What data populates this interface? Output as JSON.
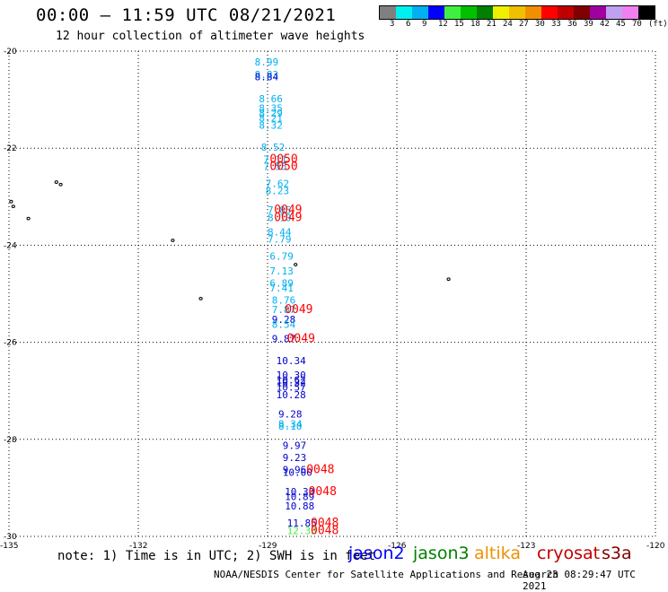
{
  "header": {
    "title": "00:00 – 11:59 UTC 08/21/2021",
    "subtitle": "12 hour collection of altimeter wave heights"
  },
  "color_scale": {
    "colors": [
      "#808080",
      "#00f0f0",
      "#00b0f0",
      "#0000ff",
      "#40f040",
      "#00c000",
      "#008000",
      "#f0f000",
      "#f0c000",
      "#f09000",
      "#ff0000",
      "#c00000",
      "#800000",
      "#a000a0",
      "#c0a0f0",
      "#f080f0",
      "#000000"
    ],
    "labels": [
      "3",
      "6",
      "9",
      "12",
      "15",
      "18",
      "21",
      "24",
      "27",
      "30",
      "33",
      "36",
      "39",
      "42",
      "45",
      "70",
      "(ft)"
    ]
  },
  "axes": {
    "lat_labels": [
      "-20",
      "-22",
      "-24",
      "-26",
      "-28",
      "-30"
    ],
    "lon_labels": [
      "-135",
      "-132",
      "-129",
      "-126",
      "-123",
      "-120"
    ]
  },
  "readings": {
    "wave_heights": [
      {
        "text": "8.99",
        "lat": -20.3,
        "lon": -129.3,
        "color": "#00b0f0"
      },
      {
        "text": "8.83",
        "lat": -20.55,
        "lon": -129.3,
        "color": "#00b0f0"
      },
      {
        "text": "8.84",
        "lat": -20.6,
        "lon": -129.3,
        "color": "#0000cc"
      },
      {
        "text": "8.66",
        "lat": -21.05,
        "lon": -129.2,
        "color": "#00b0f0"
      },
      {
        "text": "8.35",
        "lat": -21.25,
        "lon": -129.2,
        "color": "#00b0f0"
      },
      {
        "text": "8.29",
        "lat": -21.35,
        "lon": -129.2,
        "color": "#00b0f0"
      },
      {
        "text": "8.21",
        "lat": -21.45,
        "lon": -129.2,
        "color": "#00b0f0"
      },
      {
        "text": "8.32",
        "lat": -21.6,
        "lon": -129.2,
        "color": "#00b0f0"
      },
      {
        "text": "8.52",
        "lat": -22.05,
        "lon": -129.15,
        "color": "#00b0f0"
      },
      {
        "text": "7.11",
        "lat": -22.3,
        "lon": -129.1,
        "color": "#00b0f0"
      },
      {
        "text": "7.55",
        "lat": -22.45,
        "lon": -129.1,
        "color": "#00b0f0"
      },
      {
        "text": "7.62",
        "lat": -22.8,
        "lon": -129.05,
        "color": "#00b0f0"
      },
      {
        "text": "8.23",
        "lat": -22.95,
        "lon": -129.05,
        "color": "#00b0f0"
      },
      {
        "text": "7.85",
        "lat": -23.35,
        "lon": -129.0,
        "color": "#00b0f0"
      },
      {
        "text": "8.10",
        "lat": -23.5,
        "lon": -129.0,
        "color": "#00b0f0"
      },
      {
        "text": "8.44",
        "lat": -23.8,
        "lon": -129.0,
        "color": "#00b0f0"
      },
      {
        "text": "7.79",
        "lat": -23.95,
        "lon": -129.0,
        "color": "#00b0f0"
      },
      {
        "text": "6.79",
        "lat": -24.3,
        "lon": -128.95,
        "color": "#00b0f0"
      },
      {
        "text": "7.13",
        "lat": -24.6,
        "lon": -128.95,
        "color": "#00b0f0"
      },
      {
        "text": "6.89",
        "lat": -24.85,
        "lon": -128.95,
        "color": "#00b0f0"
      },
      {
        "text": "7.41",
        "lat": -24.95,
        "lon": -128.95,
        "color": "#00b0f0"
      },
      {
        "text": "8.76",
        "lat": -25.2,
        "lon": -128.9,
        "color": "#00b0f0"
      },
      {
        "text": "7.87",
        "lat": -25.4,
        "lon": -128.9,
        "color": "#00b0f0"
      },
      {
        "text": "9.28",
        "lat": -25.6,
        "lon": -128.9,
        "color": "#0000cc"
      },
      {
        "text": "8.54",
        "lat": -25.7,
        "lon": -128.9,
        "color": "#00b0f0"
      },
      {
        "text": "9.87",
        "lat": -26.0,
        "lon": -128.9,
        "color": "#0000cc"
      },
      {
        "text": "10.34",
        "lat": -26.45,
        "lon": -128.8,
        "color": "#0000cc"
      },
      {
        "text": "10.30",
        "lat": -26.75,
        "lon": -128.8,
        "color": "#0000cc"
      },
      {
        "text": "10.62",
        "lat": -26.85,
        "lon": -128.8,
        "color": "#0000cc"
      },
      {
        "text": "10.32",
        "lat": -26.9,
        "lon": -128.8,
        "color": "#0000cc"
      },
      {
        "text": "10.57",
        "lat": -27.0,
        "lon": -128.8,
        "color": "#0000cc"
      },
      {
        "text": "10.28",
        "lat": -27.15,
        "lon": -128.8,
        "color": "#0000cc"
      },
      {
        "text": "9.28",
        "lat": -27.55,
        "lon": -128.75,
        "color": "#0000cc"
      },
      {
        "text": "8.34",
        "lat": -27.75,
        "lon": -128.75,
        "color": "#00b0f0"
      },
      {
        "text": "8.10",
        "lat": -27.8,
        "lon": -128.75,
        "color": "#00b0f0"
      },
      {
        "text": "9.97",
        "lat": -28.2,
        "lon": -128.65,
        "color": "#0000cc"
      },
      {
        "text": "9.23",
        "lat": -28.45,
        "lon": -128.65,
        "color": "#0000cc"
      },
      {
        "text": "9.96",
        "lat": -28.7,
        "lon": -128.65,
        "color": "#0000cc"
      },
      {
        "text": "10.00",
        "lat": -28.75,
        "lon": -128.65,
        "color": "#0000cc"
      },
      {
        "text": "10.30",
        "lat": -29.15,
        "lon": -128.6,
        "color": "#0000cc"
      },
      {
        "text": "10.89",
        "lat": -29.25,
        "lon": -128.6,
        "color": "#0000cc"
      },
      {
        "text": "10.88",
        "lat": -29.45,
        "lon": -128.6,
        "color": "#0000cc"
      },
      {
        "text": "11.85",
        "lat": -29.8,
        "lon": -128.55,
        "color": "#0000cc"
      },
      {
        "text": "12.33",
        "lat": -29.95,
        "lon": -128.55,
        "color": "#40f040"
      }
    ],
    "time_labels": [
      {
        "text": "0050",
        "lat": -22.3,
        "lon": -128.95,
        "color": "#ff0000"
      },
      {
        "text": "0050",
        "lat": -22.45,
        "lon": -128.95,
        "color": "#ff0000"
      },
      {
        "text": "0049",
        "lat": -23.35,
        "lon": -128.85,
        "color": "#ff0000"
      },
      {
        "text": "0049",
        "lat": -23.5,
        "lon": -128.85,
        "color": "#ff0000"
      },
      {
        "text": "0049",
        "lat": -25.4,
        "lon": -128.6,
        "color": "#ff0000"
      },
      {
        "text": "0049",
        "lat": -26.0,
        "lon": -128.55,
        "color": "#ff0000"
      },
      {
        "text": "0048",
        "lat": -28.7,
        "lon": -128.1,
        "color": "#ff0000"
      },
      {
        "text": "0048",
        "lat": -29.15,
        "lon": -128.05,
        "color": "#ff0000"
      },
      {
        "text": "0048",
        "lat": -29.8,
        "lon": -128.0,
        "color": "#ff0000"
      },
      {
        "text": "0048",
        "lat": -29.95,
        "lon": -128.0,
        "color": "#ff0000"
      }
    ]
  },
  "islands": [
    {
      "lat": -22.7,
      "lon": -133.9
    },
    {
      "lat": -22.75,
      "lon": -133.8
    },
    {
      "lat": -23.1,
      "lon": -134.95
    },
    {
      "lat": -23.2,
      "lon": -134.9
    },
    {
      "lat": -23.45,
      "lon": -134.55
    },
    {
      "lat": -23.9,
      "lon": -131.2
    },
    {
      "lat": -24.4,
      "lon": -128.35
    },
    {
      "lat": -24.7,
      "lon": -124.8
    },
    {
      "lat": -25.1,
      "lon": -130.55
    }
  ],
  "footer": {
    "note": "note: 1) Time is in UTC; 2) SWH is in feet",
    "satellites": [
      {
        "name": "jason2",
        "color": "#0000ff"
      },
      {
        "name": "jason3",
        "color": "#008000"
      },
      {
        "name": "altika",
        "color": "#f09000"
      },
      {
        "name": "cryosat",
        "color": "#c00000"
      },
      {
        "name": "s3a",
        "color": "#800000"
      }
    ],
    "credit": "NOAA/NESDIS Center for Satellite Applications and Research",
    "timestamp": "Aug 23 08:29:47 UTC 2021"
  }
}
